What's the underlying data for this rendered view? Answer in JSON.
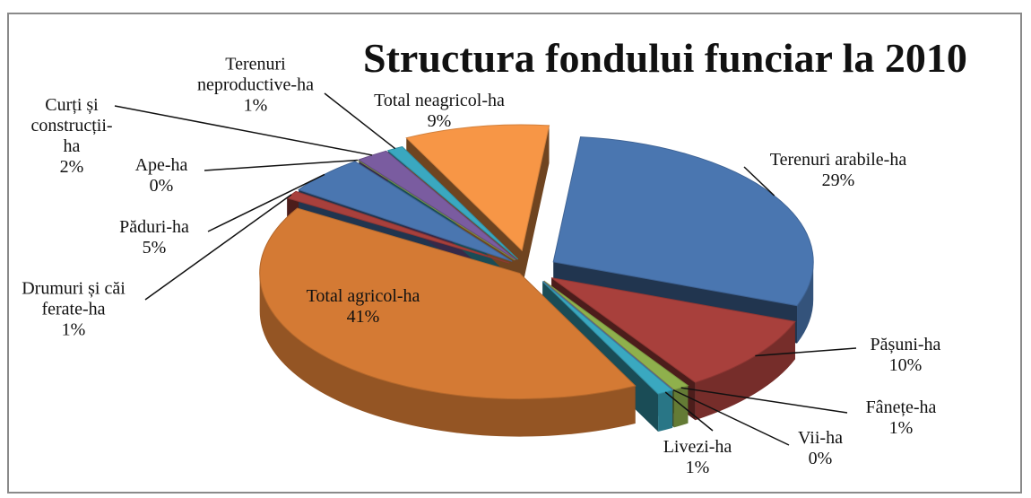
{
  "chart_data": {
    "type": "pie3d",
    "title": "Structura fondului funciar la 2010",
    "categories": [
      "Terenuri arabile-ha",
      "Pășuni-ha",
      "Fânețe-ha",
      "Vii-ha",
      "Livezi-ha",
      "Total agricol-ha",
      "Drumuri și căi ferate-ha",
      "Păduri-ha",
      "Ape-ha",
      "Curți și construcții-ha",
      "Terenuri neproductive-ha",
      "Total neagricol-ha"
    ],
    "values": [
      29,
      10,
      1,
      0,
      1,
      41,
      1,
      5,
      0,
      2,
      1,
      9
    ],
    "value_labels": [
      "29%",
      "10%",
      "1%",
      "0%",
      "1%",
      "41%",
      "1%",
      "5%",
      "0%",
      "2%",
      "1%",
      "9%"
    ],
    "colors": [
      "#4a76b0",
      "#a8403c",
      "#8fb04c",
      "#7a5ca0",
      "#3aa8c0",
      "#d47a34",
      "#a8403c",
      "#4a76b0",
      "#8fb04c",
      "#7a5ca0",
      "#3aa8c0",
      "#f79646"
    ]
  }
}
